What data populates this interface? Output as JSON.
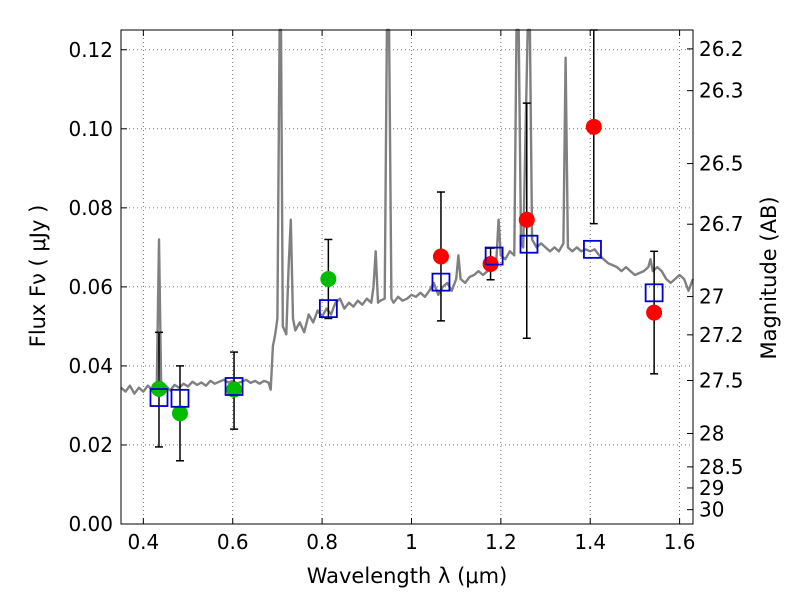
{
  "chart_data": {
    "type": "scatter",
    "xlabel": "Wavelength  λ (μm)",
    "ylabel": "Flux  Fν  ( μJy )",
    "ylabel_right": "Magnitude (AB)",
    "xlim": [
      0.35,
      1.63
    ],
    "ylim": [
      0.0,
      0.125
    ],
    "grid": true,
    "x_ticks": [
      0.4,
      0.6,
      0.8,
      1.0,
      1.2,
      1.4,
      1.6
    ],
    "x_tick_labels": [
      "0.4",
      "0.6",
      "0.8",
      "1",
      "1.2",
      "1.4",
      "1.6"
    ],
    "y_ticks": [
      0.0,
      0.02,
      0.04,
      0.06,
      0.08,
      0.1,
      0.12
    ],
    "y_tick_labels": [
      "0.00",
      "0.02",
      "0.04",
      "0.06",
      "0.08",
      "0.10",
      "0.12"
    ],
    "mag_ticks": [
      "26.2",
      "26.3",
      "26.5",
      "26.7",
      "27",
      "27.2",
      "27.5",
      "28",
      "28.5",
      "29",
      "30"
    ],
    "colors": {
      "spectrum": "#808080",
      "green_points": "#00bb00",
      "red_points": "#ff0000",
      "model_squares": "#0000cc",
      "error_bars": "#000000"
    },
    "spectrum": [
      [
        0.35,
        0.0345
      ],
      [
        0.36,
        0.0335
      ],
      [
        0.37,
        0.035
      ],
      [
        0.38,
        0.033
      ],
      [
        0.39,
        0.0345
      ],
      [
        0.4,
        0.0335
      ],
      [
        0.41,
        0.035
      ],
      [
        0.42,
        0.034
      ],
      [
        0.43,
        0.0355
      ],
      [
        0.435,
        0.072
      ],
      [
        0.44,
        0.0345
      ],
      [
        0.45,
        0.035
      ],
      [
        0.46,
        0.0338
      ],
      [
        0.47,
        0.0352
      ],
      [
        0.48,
        0.0345
      ],
      [
        0.49,
        0.0355
      ],
      [
        0.5,
        0.0348
      ],
      [
        0.51,
        0.036
      ],
      [
        0.52,
        0.0352
      ],
      [
        0.53,
        0.0358
      ],
      [
        0.54,
        0.035
      ],
      [
        0.55,
        0.0362
      ],
      [
        0.56,
        0.0355
      ],
      [
        0.57,
        0.036
      ],
      [
        0.58,
        0.0365
      ],
      [
        0.59,
        0.0358
      ],
      [
        0.6,
        0.0362
      ],
      [
        0.61,
        0.0356
      ],
      [
        0.62,
        0.036
      ],
      [
        0.63,
        0.0365
      ],
      [
        0.64,
        0.0357
      ],
      [
        0.65,
        0.0362
      ],
      [
        0.66,
        0.0355
      ],
      [
        0.67,
        0.0362
      ],
      [
        0.68,
        0.0358
      ],
      [
        0.685,
        0.034
      ],
      [
        0.69,
        0.045
      ],
      [
        0.695,
        0.048
      ],
      [
        0.7,
        0.052
      ],
      [
        0.705,
        0.125
      ],
      [
        0.708,
        0.125
      ],
      [
        0.712,
        0.05
      ],
      [
        0.72,
        0.048
      ],
      [
        0.725,
        0.065
      ],
      [
        0.73,
        0.077
      ],
      [
        0.735,
        0.052
      ],
      [
        0.74,
        0.049
      ],
      [
        0.75,
        0.051
      ],
      [
        0.76,
        0.0485
      ],
      [
        0.77,
        0.053
      ],
      [
        0.78,
        0.051
      ],
      [
        0.79,
        0.054
      ],
      [
        0.8,
        0.0525
      ],
      [
        0.81,
        0.0545
      ],
      [
        0.82,
        0.053
      ],
      [
        0.83,
        0.056
      ],
      [
        0.84,
        0.057
      ],
      [
        0.85,
        0.0545
      ],
      [
        0.86,
        0.056
      ],
      [
        0.87,
        0.055
      ],
      [
        0.88,
        0.0565
      ],
      [
        0.89,
        0.0555
      ],
      [
        0.9,
        0.057
      ],
      [
        0.91,
        0.056
      ],
      [
        0.915,
        0.06
      ],
      [
        0.92,
        0.069
      ],
      [
        0.925,
        0.056
      ],
      [
        0.93,
        0.0565
      ],
      [
        0.94,
        0.057
      ],
      [
        0.945,
        0.125
      ],
      [
        0.95,
        0.125
      ],
      [
        0.955,
        0.057
      ],
      [
        0.96,
        0.056
      ],
      [
        0.97,
        0.0575
      ],
      [
        0.98,
        0.0565
      ],
      [
        0.99,
        0.057
      ],
      [
        1.0,
        0.058
      ],
      [
        1.01,
        0.0575
      ],
      [
        1.02,
        0.0585
      ],
      [
        1.03,
        0.0575
      ],
      [
        1.04,
        0.059
      ],
      [
        1.05,
        0.061
      ],
      [
        1.06,
        0.058
      ],
      [
        1.07,
        0.06
      ],
      [
        1.08,
        0.061
      ],
      [
        1.09,
        0.059
      ],
      [
        1.1,
        0.062
      ],
      [
        1.105,
        0.068
      ],
      [
        1.11,
        0.062
      ],
      [
        1.12,
        0.061
      ],
      [
        1.13,
        0.0625
      ],
      [
        1.14,
        0.063
      ],
      [
        1.15,
        0.064
      ],
      [
        1.16,
        0.063
      ],
      [
        1.17,
        0.064
      ],
      [
        1.18,
        0.065
      ],
      [
        1.19,
        0.067
      ],
      [
        1.195,
        0.077
      ],
      [
        1.2,
        0.068
      ],
      [
        1.21,
        0.067
      ],
      [
        1.22,
        0.069
      ],
      [
        1.23,
        0.068
      ],
      [
        1.235,
        0.125
      ],
      [
        1.24,
        0.125
      ],
      [
        1.245,
        0.071
      ],
      [
        1.25,
        0.07
      ],
      [
        1.26,
        0.125
      ],
      [
        1.265,
        0.125
      ],
      [
        1.27,
        0.072
      ],
      [
        1.28,
        0.07
      ],
      [
        1.29,
        0.071
      ],
      [
        1.3,
        0.07
      ],
      [
        1.31,
        0.069
      ],
      [
        1.32,
        0.07
      ],
      [
        1.33,
        0.069
      ],
      [
        1.34,
        0.071
      ],
      [
        1.345,
        0.118
      ],
      [
        1.35,
        0.07
      ],
      [
        1.36,
        0.069
      ],
      [
        1.37,
        0.07
      ],
      [
        1.38,
        0.069
      ],
      [
        1.39,
        0.0695
      ],
      [
        1.4,
        0.069
      ],
      [
        1.41,
        0.0695
      ],
      [
        1.42,
        0.068
      ],
      [
        1.43,
        0.067
      ],
      [
        1.44,
        0.066
      ],
      [
        1.45,
        0.0655
      ],
      [
        1.46,
        0.065
      ],
      [
        1.47,
        0.064
      ],
      [
        1.48,
        0.065
      ],
      [
        1.49,
        0.064
      ],
      [
        1.5,
        0.063
      ],
      [
        1.51,
        0.0635
      ],
      [
        1.52,
        0.064
      ],
      [
        1.53,
        0.065
      ],
      [
        1.535,
        0.067
      ],
      [
        1.54,
        0.064
      ],
      [
        1.55,
        0.065
      ],
      [
        1.56,
        0.064
      ],
      [
        1.57,
        0.062
      ],
      [
        1.58,
        0.061
      ],
      [
        1.59,
        0.062
      ],
      [
        1.6,
        0.063
      ],
      [
        1.61,
        0.062
      ],
      [
        1.62,
        0.059
      ],
      [
        1.63,
        0.062
      ]
    ],
    "series": [
      {
        "name": "green",
        "marker": "circle",
        "x": [
          0.435,
          0.482,
          0.603,
          0.814
        ],
        "y": [
          0.0342,
          0.028,
          0.034,
          0.062
        ],
        "err_low": [
          0.0147,
          0.012,
          0.01,
          0.01
        ],
        "err_high": [
          0.0143,
          0.012,
          0.0095,
          0.01
        ]
      },
      {
        "name": "red",
        "marker": "circle",
        "x": [
          1.066,
          1.177,
          1.258,
          1.408,
          1.543
        ],
        "y": [
          0.0677,
          0.0658,
          0.077,
          0.1005,
          0.0535
        ],
        "err_low": [
          0.0163,
          0.004,
          0.03,
          0.0245,
          0.0155
        ],
        "err_high": [
          0.0163,
          0.004,
          0.0295,
          0.0245,
          0.0155
        ]
      },
      {
        "name": "model",
        "marker": "open-square",
        "x": [
          0.435,
          0.482,
          0.603,
          0.814,
          1.066,
          1.185,
          1.263,
          1.405,
          1.543
        ],
        "y": [
          0.032,
          0.0318,
          0.0348,
          0.0545,
          0.0612,
          0.0678,
          0.0708,
          0.0695,
          0.0585
        ]
      }
    ]
  }
}
